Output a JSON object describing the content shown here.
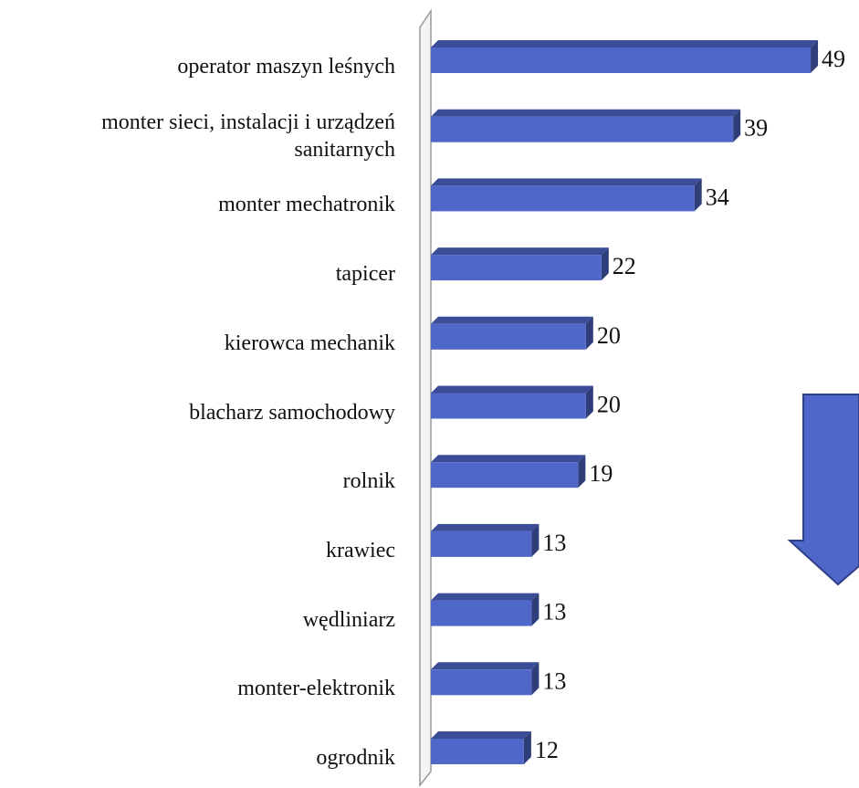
{
  "chart_data": {
    "type": "bar",
    "orientation": "horizontal",
    "categories": [
      "operator maszyn leśnych",
      "monter sieci, instalacji i urządzeń sanitarnych",
      "monter mechatronik",
      "tapicer",
      "kierowca mechanik",
      "blacharz samochodowy",
      "rolnik",
      "krawiec",
      "wędliniarz",
      "monter-elektronik",
      "ogrodnik"
    ],
    "values": [
      49,
      39,
      34,
      22,
      20,
      20,
      19,
      13,
      13,
      13,
      12
    ],
    "color": "#4f67c9",
    "xlim": [
      0,
      55
    ]
  }
}
